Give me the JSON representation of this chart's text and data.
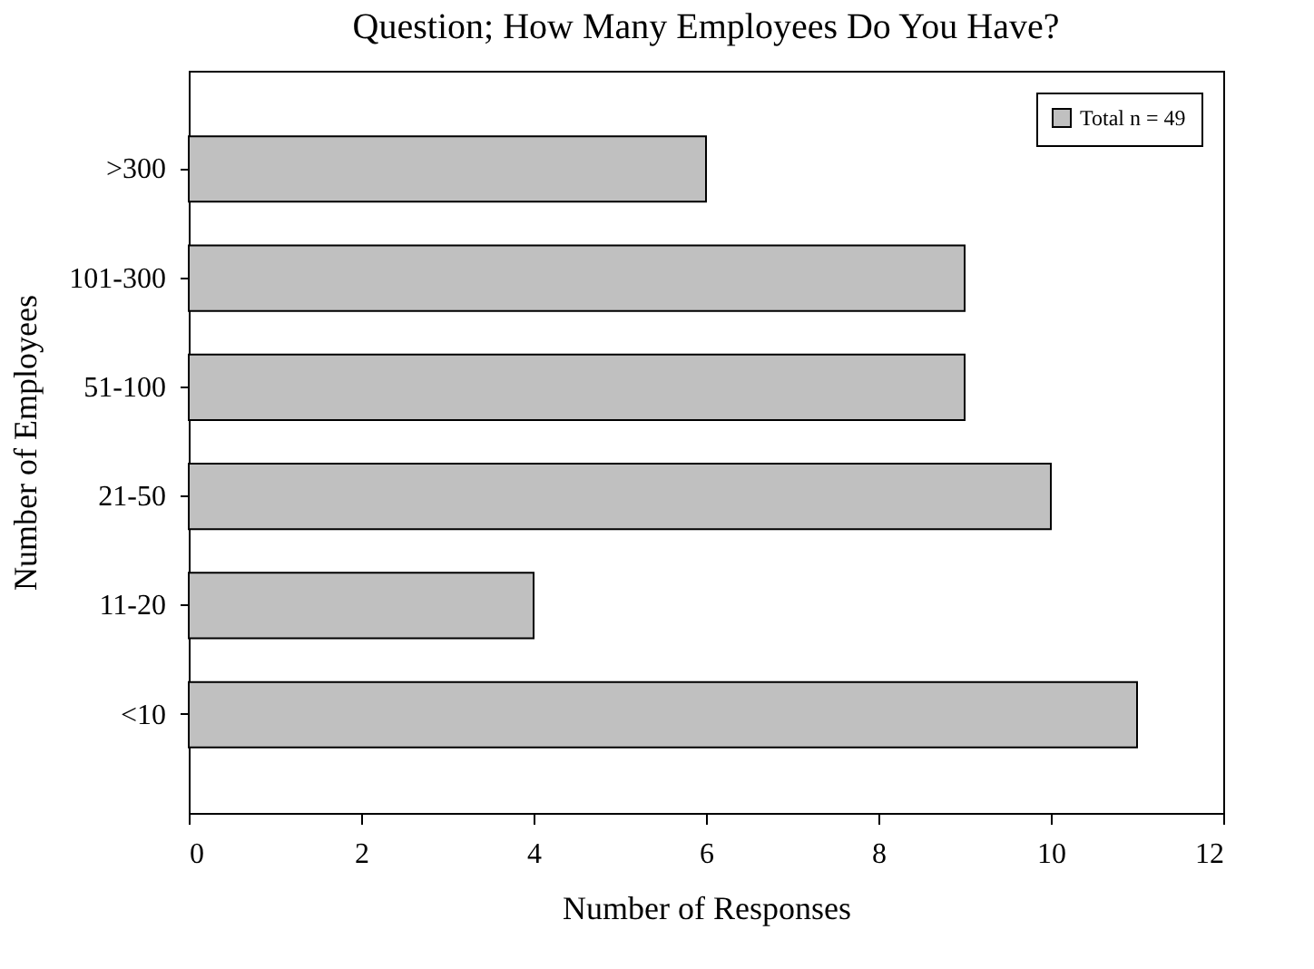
{
  "chart_data": {
    "type": "bar",
    "orientation": "horizontal",
    "title": "Question; How Many Employees Do You Have?",
    "xlabel": "Number of Responses",
    "ylabel": "Number of Employees",
    "categories": [
      ">300",
      "101-300",
      "51-100",
      "21-50",
      "11-20",
      "<10"
    ],
    "series": [
      {
        "name": "Total n = 49",
        "color": "#c0c0c0",
        "values": [
          6,
          9,
          9,
          10,
          4,
          11
        ]
      }
    ],
    "xlim": [
      0,
      12
    ],
    "xticks": [
      0,
      2,
      4,
      6,
      8,
      10,
      12
    ],
    "grid": false,
    "legend": "top right"
  }
}
